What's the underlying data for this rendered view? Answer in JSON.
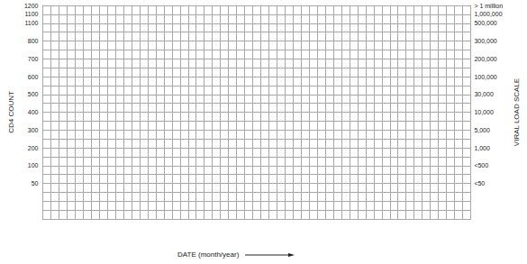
{
  "chart_data": {
    "type": "line",
    "x_label": "DATE (month/year)",
    "y_label": "CD4 COUNT",
    "y2_label": "VIRAL LOAD SCALE",
    "x": [
      null,
      null,
      null,
      null,
      null,
      null,
      null,
      null,
      null,
      null,
      null,
      null,
      null,
      null,
      null,
      null,
      null,
      null,
      null,
      null,
      null,
      null,
      null,
      null,
      null,
      null,
      null,
      null,
      null,
      null,
      null,
      null,
      null,
      null,
      null,
      null,
      null,
      null,
      null,
      null,
      null,
      null,
      null,
      null,
      null,
      null,
      null,
      null,
      null,
      null,
      null,
      null,
      null,
      null
    ],
    "y_categories": [
      null,
      null,
      null,
      null,
      "50",
      null,
      "100",
      null,
      "200",
      null,
      "300",
      null,
      "400",
      null,
      "500",
      null,
      "600",
      null,
      "700",
      null,
      "800",
      null,
      "1100",
      "1100",
      "1200"
    ],
    "y2_categories": [
      null,
      null,
      null,
      null,
      "<50",
      null,
      "<500",
      null,
      "1,000",
      null,
      "5,000",
      null,
      "10,000",
      null,
      "30,000",
      null,
      "100,000",
      null,
      "200,000",
      null,
      "300,000",
      null,
      "500,000",
      "1,000,000",
      "> 1 million"
    ],
    "series": [],
    "grid": true,
    "tick_labels": "y"
  }
}
